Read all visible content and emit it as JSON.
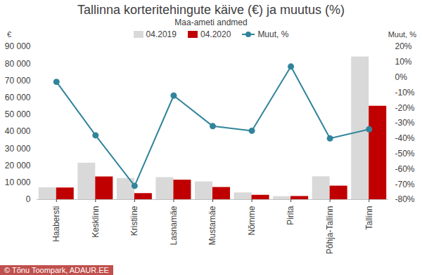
{
  "chart_data": {
    "type": "bar",
    "title": "Tallinna korteritehingute käive (€) ja muutus (%)",
    "subtitle": "Maa-ameti andmed",
    "y_label": "€",
    "y2_label": "Muut, %",
    "caption": "© Tõnu Toompark, ADAUR.EE",
    "categories": [
      "Haabersti",
      "Kesklinn",
      "Kristiine",
      "Lasnamäe",
      "Mustamäe",
      "Nõmme",
      "Pirita",
      "Põhja-Tallinn",
      "Tallinn"
    ],
    "series": [
      {
        "name": "04.2019",
        "color": "#d9d9d9",
        "values": [
          7000,
          21500,
          12500,
          13000,
          10500,
          4000,
          1800,
          13500,
          84000
        ]
      },
      {
        "name": "04.2020",
        "color": "#c00000",
        "values": [
          6900,
          13400,
          3600,
          11500,
          7200,
          2600,
          1900,
          8000,
          55000
        ]
      },
      {
        "name": "Muut, %",
        "type": "line",
        "marker": "circle",
        "axis": "y2",
        "color": "#31849b",
        "values": [
          -3,
          -38,
          -71,
          -12,
          -32,
          -35,
          7,
          -40,
          -34
        ]
      }
    ],
    "ylim": [
      0,
      90000
    ],
    "yticks": [
      0,
      {
        "value": 10000,
        "label": "10 000"
      },
      {
        "value": 20000,
        "label": "20 000"
      },
      {
        "value": 30000,
        "label": "30 000"
      },
      {
        "value": 40000,
        "label": "40 000"
      },
      {
        "value": 50000,
        "label": "50 000"
      },
      {
        "value": 60000,
        "label": "60 000"
      },
      {
        "value": 70000,
        "label": "70 000"
      },
      {
        "value": 80000,
        "label": "80 000"
      },
      {
        "value": 90000,
        "label": "90 000"
      }
    ],
    "y2lim": [
      -80,
      20
    ],
    "y2ticks": [
      {
        "value": -80,
        "label": "-80%"
      },
      {
        "value": -70,
        "label": "-70%"
      },
      {
        "value": -60,
        "label": "-60%"
      },
      {
        "value": -50,
        "label": "-50%"
      },
      {
        "value": -40,
        "label": "-40%"
      },
      {
        "value": -30,
        "label": "-30%"
      },
      {
        "value": -20,
        "label": "-20%"
      },
      {
        "value": -10,
        "label": "-10%"
      },
      {
        "value": 0,
        "label": "0%"
      },
      {
        "value": 10,
        "label": "10%"
      },
      {
        "value": 20,
        "label": "20%"
      }
    ],
    "grid": false,
    "legend": "top"
  }
}
